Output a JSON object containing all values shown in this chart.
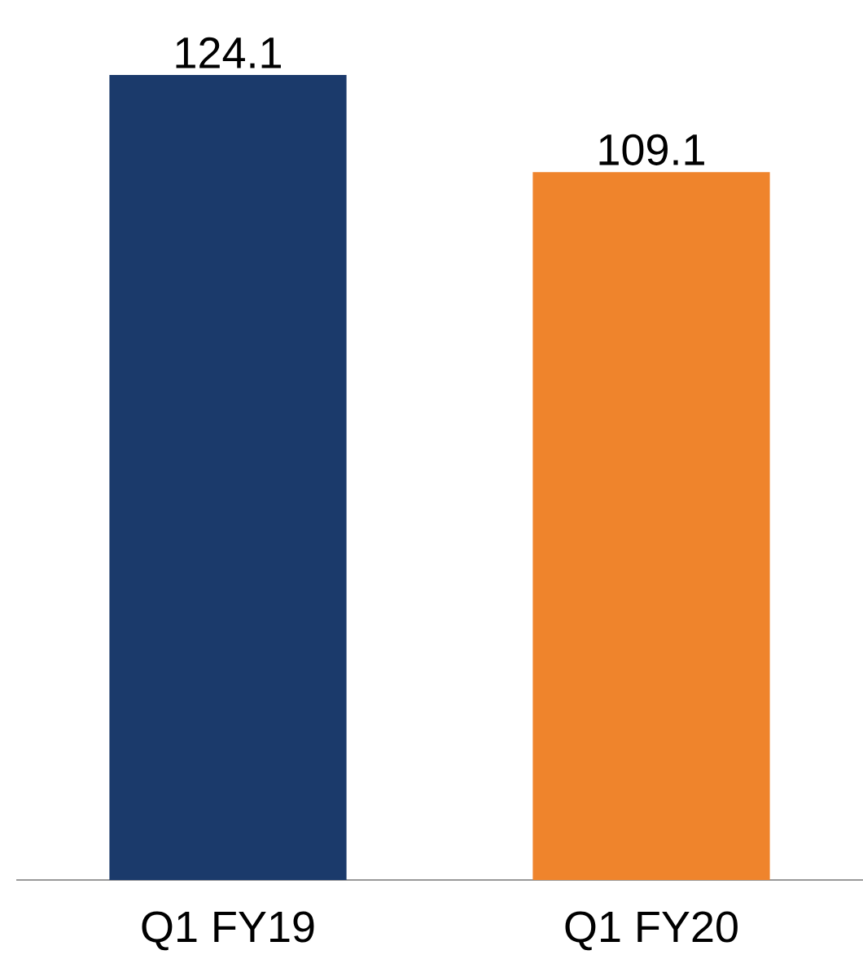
{
  "chart_data": {
    "type": "bar",
    "categories": [
      "Q1 FY19",
      "Q1 FY20"
    ],
    "values": [
      124.1,
      109.1
    ],
    "colors": [
      "#1b3a6b",
      "#ef842c"
    ],
    "data_labels": true,
    "tick_labels": "x"
  }
}
